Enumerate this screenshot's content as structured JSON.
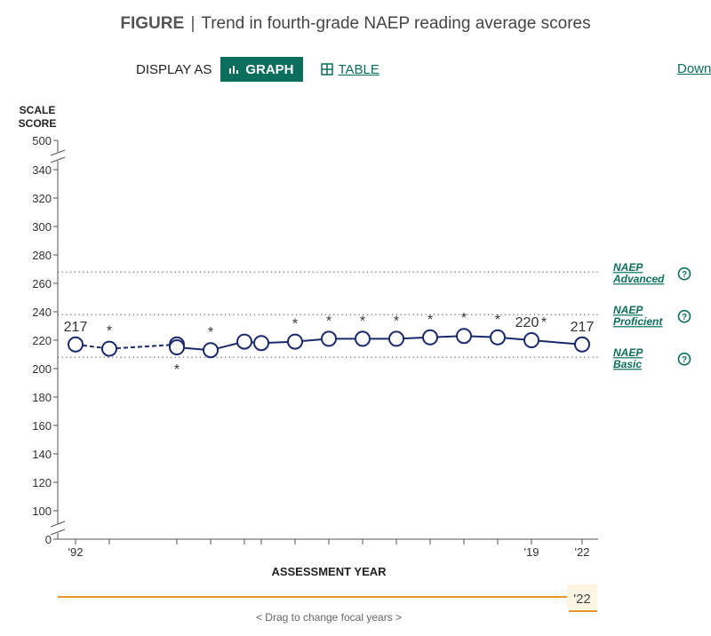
{
  "figure": {
    "label": "FIGURE",
    "separator": "|",
    "title": "Trend in fourth-grade NAEP reading average scores"
  },
  "controls": {
    "display_as": "DISPLAY AS",
    "graph_label": "GRAPH",
    "table_label": "TABLE",
    "download_label": "Down"
  },
  "slider": {
    "focal_label": "'22",
    "hint": "< Drag to change focal years >",
    "accent_color": "#e8942c"
  },
  "colors": {
    "brand": "#0b6e5c",
    "series": "#1a2a6c"
  },
  "chart_data": {
    "type": "line",
    "title": "",
    "ylabel": "SCALE SCORE",
    "xlabel": "ASSESSMENT YEAR",
    "ylim": [
      0,
      500
    ],
    "y_axis_break": true,
    "y_ticks": [
      0,
      100,
      120,
      140,
      160,
      180,
      200,
      220,
      240,
      260,
      280,
      300,
      320,
      340,
      500
    ],
    "x_tick_labels": [
      "'92",
      "'19",
      "'22"
    ],
    "grid": false,
    "series": [
      {
        "x": [
          1992,
          1994,
          1998,
          1998,
          2000,
          2002,
          2003,
          2005,
          2007,
          2009,
          2011,
          2013,
          2015,
          2017,
          2019,
          2022
        ],
        "y": [
          217,
          214,
          217,
          215,
          213,
          219,
          218,
          219,
          221,
          221,
          221,
          222,
          223,
          222,
          220,
          217
        ],
        "segments_dashed_until_index": 2
      }
    ],
    "data_labels": [
      {
        "year": 1992,
        "text": "217"
      },
      {
        "year": 2019,
        "text": "220"
      },
      {
        "year": 2022,
        "text": "217"
      }
    ],
    "significance_markers": [
      {
        "year": 1994,
        "text": "*",
        "position": "above"
      },
      {
        "year": 1998,
        "text": "*",
        "position": "below"
      },
      {
        "year": 2000,
        "text": "*",
        "position": "above"
      },
      {
        "year": 2005,
        "text": "*",
        "position": "above"
      },
      {
        "year": 2007,
        "text": "*",
        "position": "above"
      },
      {
        "year": 2009,
        "text": "*",
        "position": "above"
      },
      {
        "year": 2011,
        "text": "*",
        "position": "above"
      },
      {
        "year": 2013,
        "text": "*",
        "position": "above"
      },
      {
        "year": 2015,
        "text": "*",
        "position": "above"
      },
      {
        "year": 2017,
        "text": "*",
        "position": "above"
      },
      {
        "year": 2019,
        "text": "*",
        "position": "right"
      }
    ],
    "reference_lines": [
      {
        "value": 268,
        "line1": "NAEP",
        "line2": "Advanced"
      },
      {
        "value": 238,
        "line1": "NAEP",
        "line2": "Proficient"
      },
      {
        "value": 208,
        "line1": "NAEP",
        "line2": "Basic"
      }
    ],
    "help_icon": "?"
  }
}
